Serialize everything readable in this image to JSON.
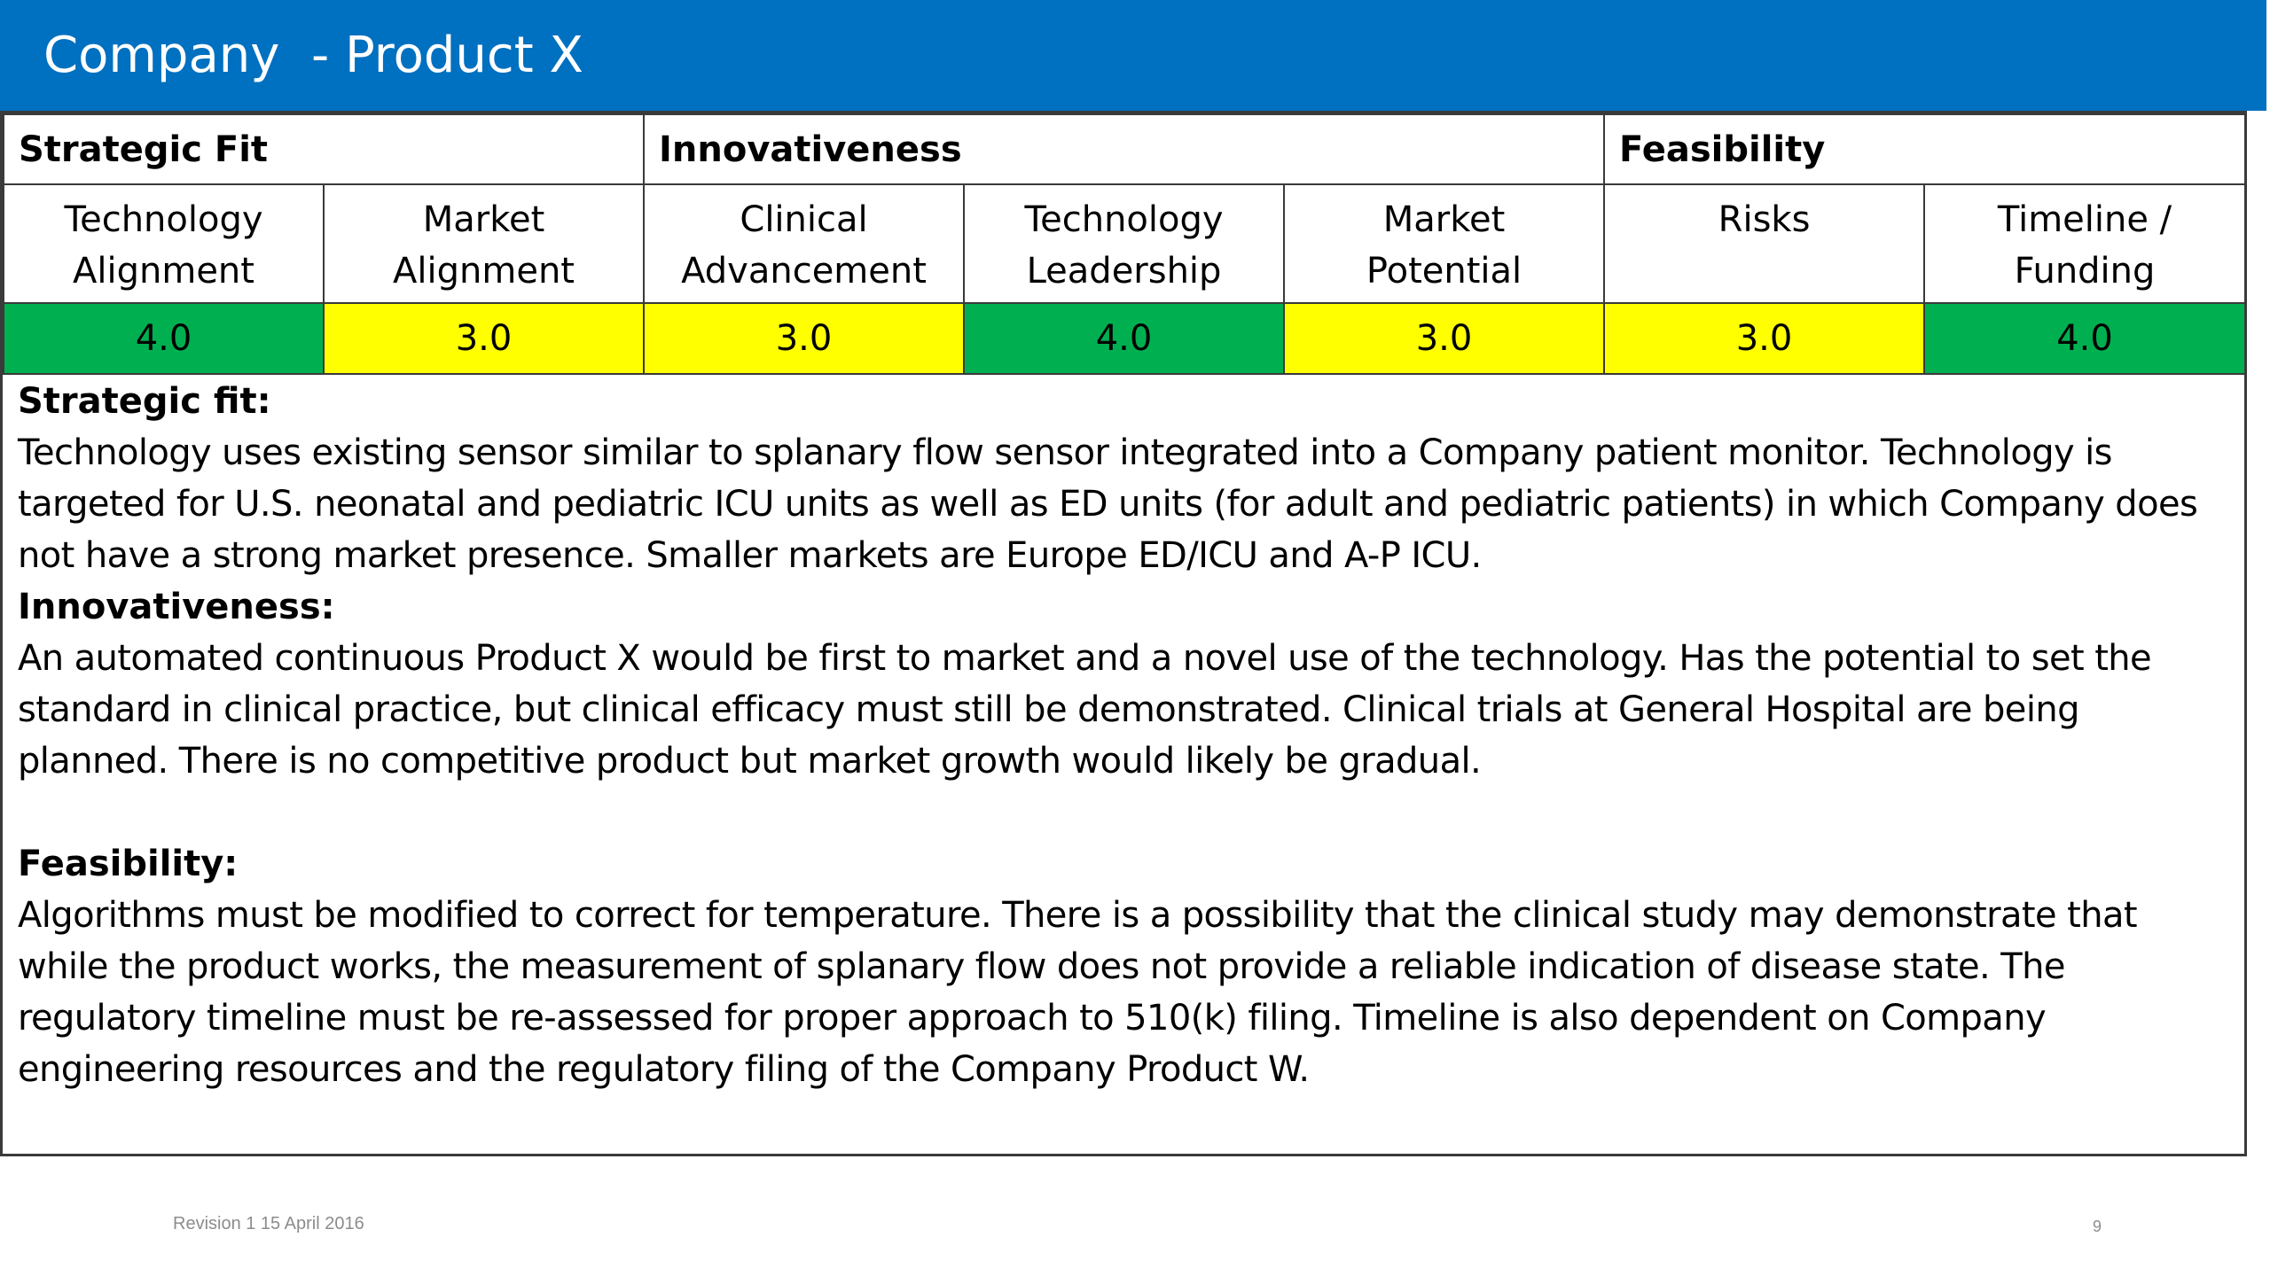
{
  "slide": {
    "title": "Company  - Product X",
    "footer_revision": "Revision 1 15 April 2016",
    "page_number": "9"
  },
  "colors": {
    "title_bar": "#0070c0",
    "score_high": "#00b050",
    "score_medium": "#ffff00"
  },
  "categories": [
    {
      "label": "Strategic Fit"
    },
    {
      "label": "Innovativeness"
    },
    {
      "label": "Feasibility"
    }
  ],
  "criteria": [
    {
      "line1": "Technology",
      "line2": "Alignment",
      "score": "4.0",
      "color": "green"
    },
    {
      "line1": "Market",
      "line2": "Alignment",
      "score": "3.0",
      "color": "yellow"
    },
    {
      "line1": "Clinical",
      "line2": "Advancement",
      "score": "3.0",
      "color": "yellow"
    },
    {
      "line1": "Technology",
      "line2": "Leadership",
      "score": "4.0",
      "color": "green"
    },
    {
      "line1": "Market",
      "line2": "Potential",
      "score": "3.0",
      "color": "yellow"
    },
    {
      "line1": "Risks",
      "line2": "",
      "score": "3.0",
      "color": "yellow"
    },
    {
      "line1": "Timeline /",
      "line2": "Funding",
      "score": "4.0",
      "color": "green"
    }
  ],
  "sections": [
    {
      "heading": "Strategic fit:",
      "body": "Technology uses existing sensor similar to splanary flow sensor integrated into a Company patient monitor.  Technology is targeted for U.S. neonatal  and pediatric ICU units as well as ED units (for adult and pediatric patients) in which Company does not have a strong market presence.  Smaller markets are Europe ED/ICU and A-P ICU."
    },
    {
      "heading": "Innovativeness:",
      "body": "An automated continuous Product X would be first to market and a novel use of the technology.  Has the potential to set the standard in clinical practice, but clinical efficacy must still be demonstrated.  Clinical trials at General Hospital are being planned.  There is no competitive product but market growth would likely be gradual."
    },
    {
      "heading": "Feasibility:",
      "body": "Algorithms must be modified to correct for temperature. There is a possibility that the clinical study may demonstrate that while the product works, the measurement of splanary flow does not provide a reliable indication of disease state. The regulatory timeline must be re-assessed for proper approach to 510(k) filing.  Timeline is also dependent on Company engineering resources and the regulatory filing of the Company Product W."
    }
  ]
}
